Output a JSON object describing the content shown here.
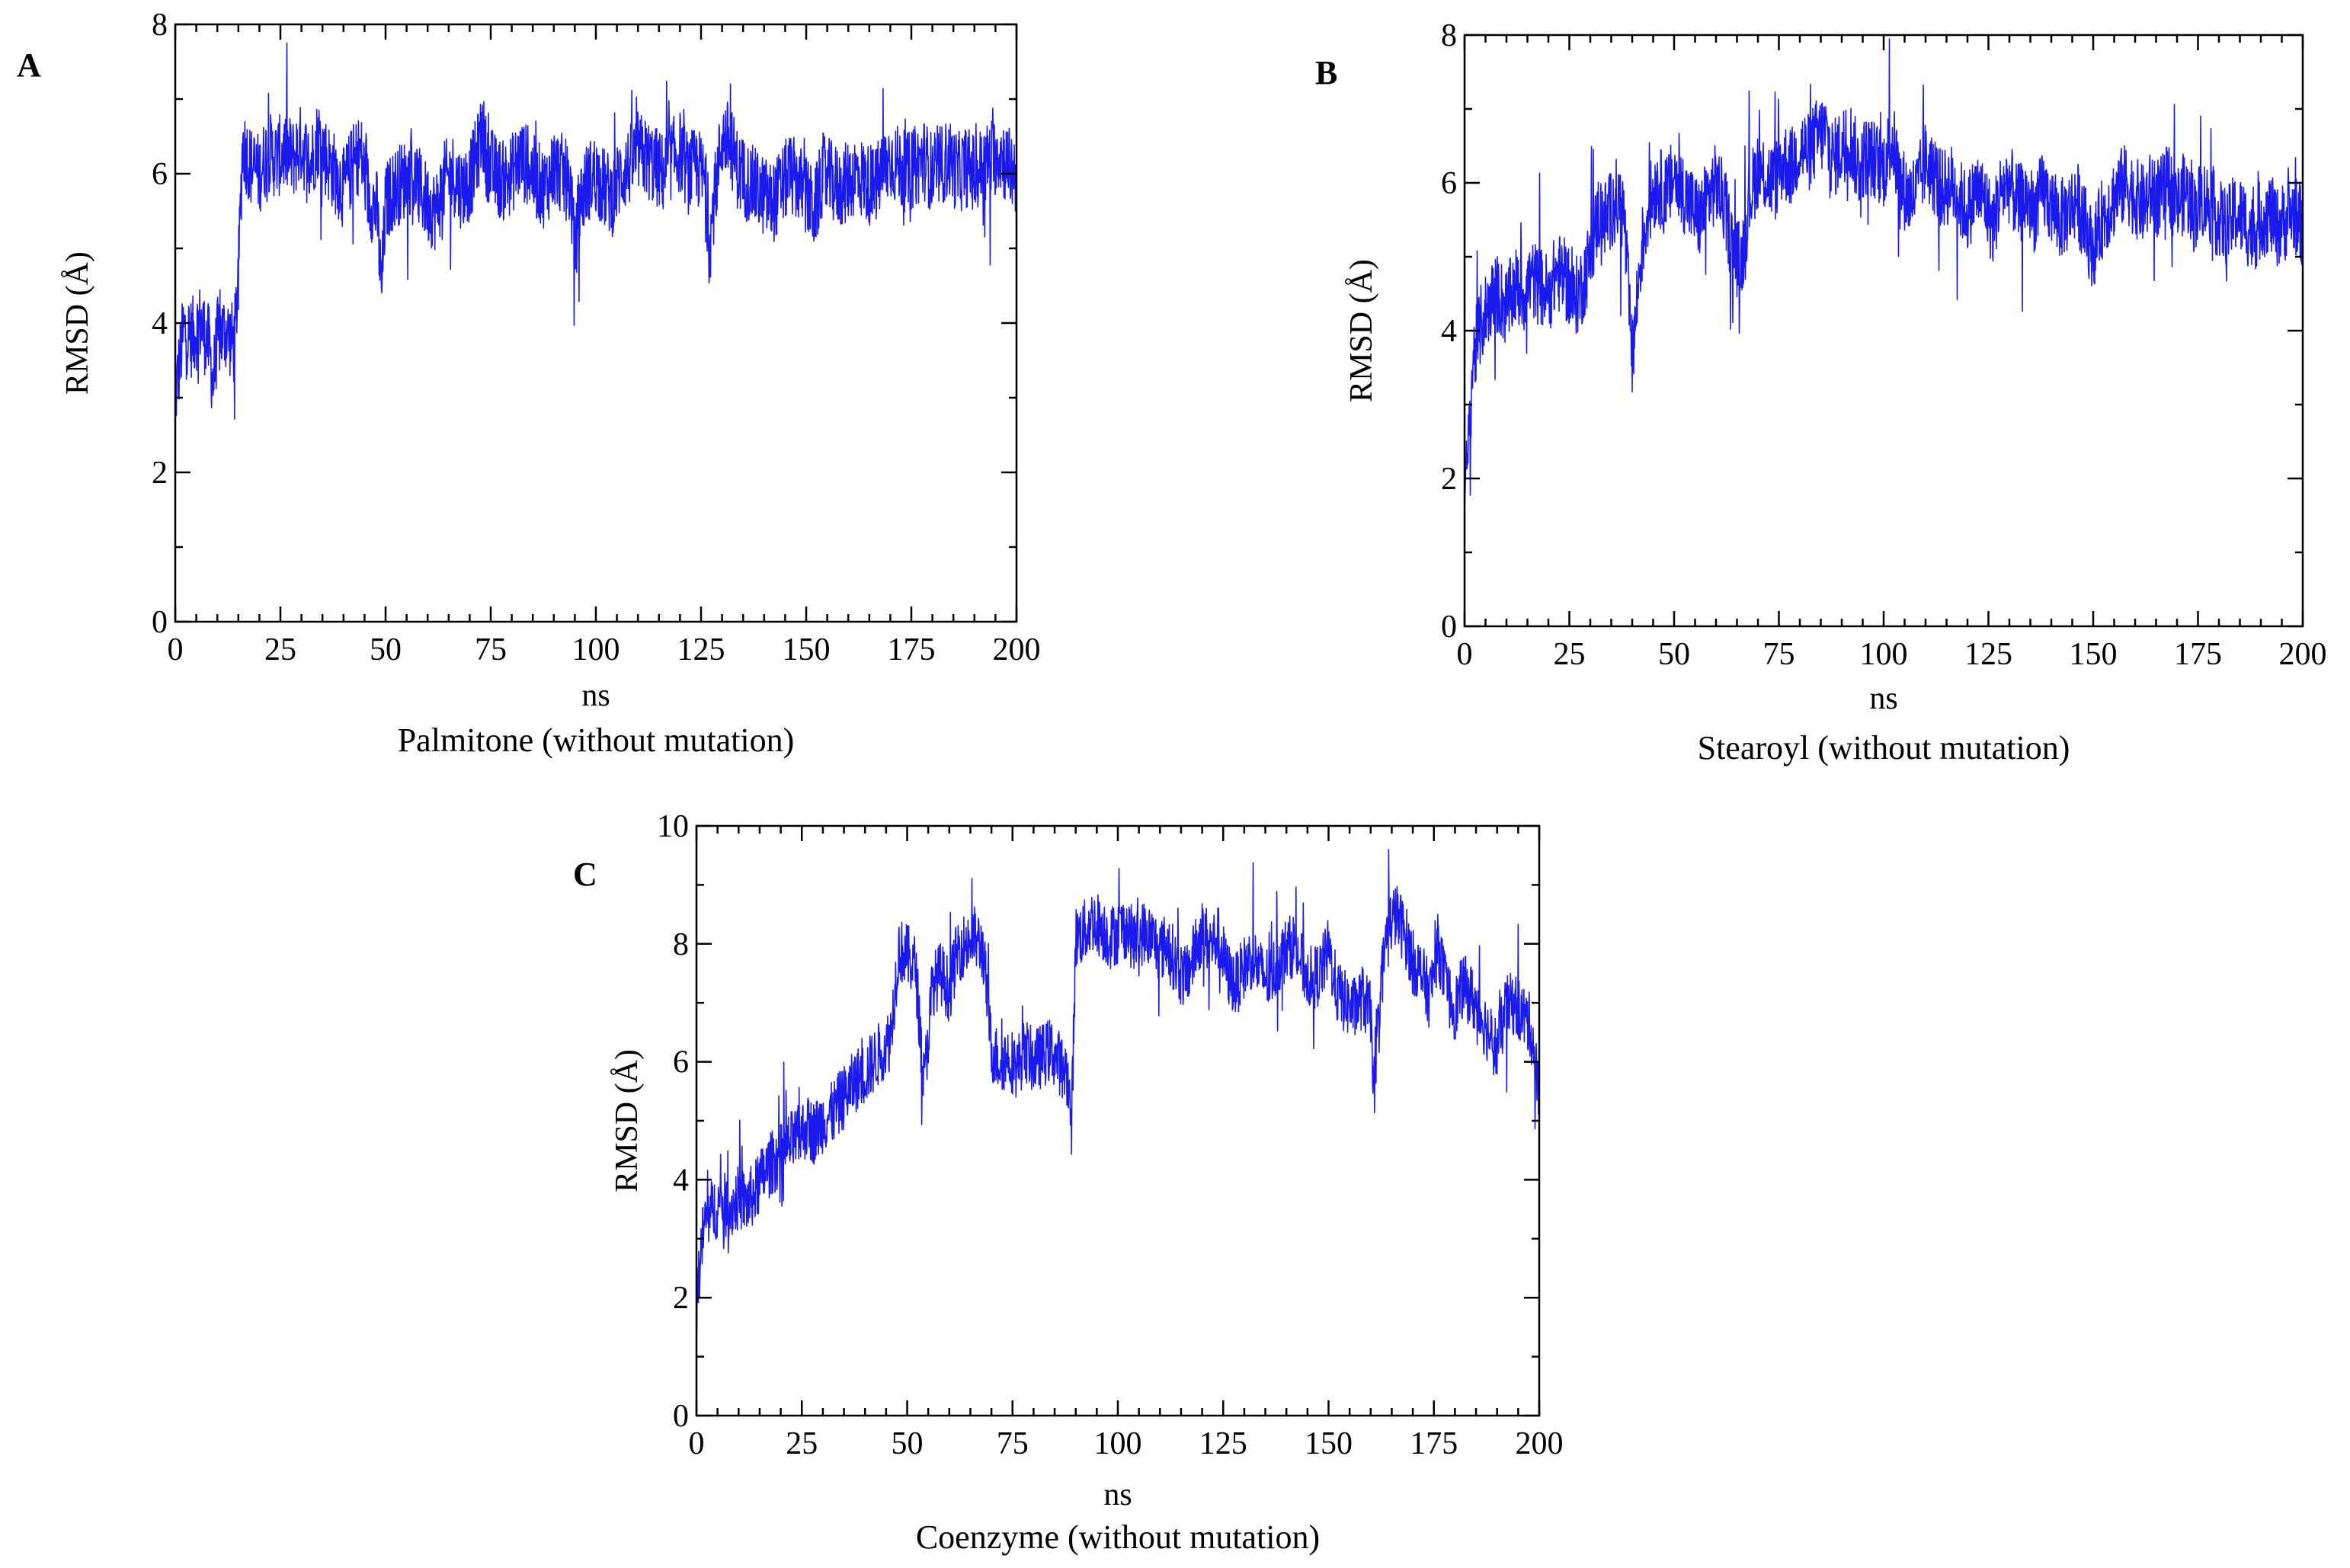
{
  "chart_data": [
    {
      "type": "line",
      "panel_label": "A",
      "title": "Palmitone (without mutation)",
      "xlabel": "ns",
      "ylabel": "RMSD (Å)",
      "xlim": [
        0,
        200
      ],
      "ylim": [
        0,
        8
      ],
      "x_ticks": [
        0,
        25,
        50,
        75,
        100,
        125,
        150,
        175,
        200
      ],
      "x_tick_labels": [
        "0",
        "25",
        "50",
        "75",
        "100",
        "125",
        "150",
        "175",
        "200"
      ],
      "y_ticks": [
        0,
        2,
        4,
        6,
        8
      ],
      "y_tick_labels": [
        "0",
        "2",
        "4",
        "6",
        "8"
      ],
      "color": "#1a1aee",
      "series": [
        {
          "name": "RMSD",
          "x": [
            0,
            2,
            4,
            6,
            8,
            9,
            10,
            12,
            14,
            15,
            16,
            18,
            20,
            22,
            24,
            26,
            28,
            30,
            32,
            34,
            36,
            38,
            40,
            42,
            44,
            46,
            48,
            49,
            50,
            52,
            54,
            56,
            58,
            60,
            62,
            64,
            66,
            68,
            70,
            72,
            73,
            74,
            76,
            78,
            80,
            82,
            84,
            86,
            88,
            90,
            92,
            94,
            95,
            96,
            98,
            100,
            102,
            104,
            106,
            108,
            110,
            112,
            114,
            116,
            118,
            120,
            122,
            124,
            126,
            127,
            128,
            130,
            132,
            134,
            136,
            138,
            140,
            142,
            144,
            146,
            148,
            150,
            152,
            154,
            156,
            158,
            160,
            162,
            164,
            166,
            168,
            170,
            172,
            174,
            176,
            178,
            180,
            182,
            184,
            186,
            188,
            190,
            192,
            194,
            196,
            198,
            200
          ],
          "y": [
            3.0,
            3.9,
            3.8,
            4.0,
            3.7,
            3.2,
            3.8,
            3.9,
            3.7,
            4.6,
            6.4,
            6.1,
            6.0,
            6.3,
            6.2,
            6.3,
            6.2,
            6.4,
            6.1,
            6.5,
            6.2,
            6.0,
            5.8,
            6.1,
            6.3,
            5.7,
            5.5,
            4.4,
            5.6,
            5.8,
            5.9,
            6.0,
            5.8,
            5.6,
            5.5,
            5.9,
            6.0,
            5.8,
            5.9,
            6.3,
            6.6,
            6.2,
            6.0,
            5.9,
            6.0,
            6.2,
            6.1,
            5.9,
            5.8,
            6.1,
            6.0,
            5.8,
            4.9,
            5.6,
            5.9,
            6.0,
            5.8,
            5.7,
            6.0,
            6.1,
            6.3,
            6.2,
            6.1,
            6.0,
            6.2,
            6.3,
            6.0,
            6.1,
            5.9,
            5.0,
            5.6,
            6.5,
            6.4,
            6.0,
            5.9,
            5.8,
            5.7,
            5.6,
            5.8,
            6.0,
            5.9,
            5.7,
            5.5,
            6.0,
            5.9,
            5.8,
            5.9,
            6.0,
            5.9,
            5.8,
            6.0,
            6.2,
            6.1,
            6.0,
            6.1,
            6.2,
            6.0,
            6.1,
            6.2,
            6.0,
            6.1,
            6.0,
            6.1,
            6.2,
            6.3,
            6.1,
            6.0
          ]
        }
      ]
    },
    {
      "type": "line",
      "panel_label": "B",
      "title": "Stearoyl (without mutation)",
      "xlabel": "ns",
      "ylabel": "RMSD (Å)",
      "xlim": [
        0,
        200
      ],
      "ylim": [
        0,
        8
      ],
      "x_ticks": [
        0,
        25,
        50,
        75,
        100,
        125,
        150,
        175,
        200
      ],
      "x_tick_labels": [
        "0",
        "25",
        "50",
        "75",
        "100",
        "125",
        "150",
        "175",
        "200"
      ],
      "y_ticks": [
        0,
        2,
        4,
        6,
        8
      ],
      "y_tick_labels": [
        "0",
        "2",
        "4",
        "6",
        "8"
      ],
      "color": "#1a1aee",
      "series": [
        {
          "name": "RMSD",
          "x": [
            0,
            1,
            2,
            4,
            6,
            8,
            10,
            12,
            14,
            16,
            18,
            20,
            22,
            24,
            26,
            28,
            30,
            32,
            34,
            36,
            38,
            40,
            42,
            44,
            46,
            48,
            50,
            52,
            54,
            56,
            58,
            60,
            62,
            64,
            66,
            68,
            70,
            72,
            74,
            76,
            78,
            80,
            82,
            84,
            86,
            88,
            90,
            92,
            94,
            96,
            98,
            100,
            102,
            104,
            106,
            108,
            110,
            112,
            114,
            116,
            118,
            120,
            122,
            124,
            126,
            128,
            130,
            132,
            134,
            136,
            138,
            140,
            142,
            144,
            146,
            148,
            150,
            152,
            154,
            156,
            158,
            160,
            162,
            164,
            166,
            168,
            170,
            172,
            174,
            176,
            178,
            180,
            182,
            184,
            186,
            188,
            190,
            192,
            194,
            196,
            198,
            200
          ],
          "y": [
            1.6,
            2.5,
            3.6,
            4.1,
            4.4,
            4.5,
            4.3,
            4.6,
            4.5,
            4.7,
            4.6,
            4.5,
            4.8,
            4.7,
            4.4,
            4.6,
            5.0,
            5.6,
            5.5,
            5.8,
            5.6,
            3.6,
            5.0,
            5.7,
            6.0,
            5.8,
            6.1,
            5.9,
            5.7,
            5.5,
            5.8,
            6.0,
            5.7,
            5.1,
            4.9,
            5.8,
            6.2,
            6.1,
            6.0,
            6.3,
            6.2,
            6.5,
            6.4,
            6.6,
            6.7,
            6.3,
            6.5,
            6.6,
            6.2,
            6.4,
            6.3,
            6.2,
            6.6,
            6.0,
            5.8,
            5.9,
            6.3,
            6.1,
            5.9,
            6.0,
            5.8,
            5.6,
            5.9,
            5.8,
            5.4,
            5.9,
            6.0,
            5.7,
            5.8,
            5.6,
            5.9,
            5.7,
            5.5,
            5.6,
            5.8,
            5.4,
            5.1,
            5.5,
            5.7,
            5.9,
            6.0,
            5.8,
            5.7,
            5.9,
            5.8,
            6.0,
            5.7,
            5.9,
            5.6,
            5.8,
            5.7,
            5.5,
            5.4,
            5.6,
            5.5,
            5.3,
            5.5,
            5.6,
            5.4,
            5.5,
            5.6,
            5.4
          ]
        }
      ]
    },
    {
      "type": "line",
      "panel_label": "C",
      "title": "Coenzyme (without mutation)",
      "xlabel": "ns",
      "ylabel": "RMSD (Å)",
      "xlim": [
        0,
        200
      ],
      "ylim": [
        0,
        10
      ],
      "x_ticks": [
        0,
        25,
        50,
        75,
        100,
        125,
        150,
        175,
        200
      ],
      "x_tick_labels": [
        "0",
        "25",
        "50",
        "75",
        "100",
        "125",
        "150",
        "175",
        "200"
      ],
      "y_ticks": [
        0,
        2,
        4,
        6,
        8,
        10
      ],
      "y_tick_labels": [
        "0",
        "2",
        "4",
        "6",
        "8",
        "10"
      ],
      "color": "#1a1aee",
      "series": [
        {
          "name": "RMSD",
          "x": [
            0,
            1,
            2,
            4,
            6,
            8,
            10,
            12,
            14,
            16,
            18,
            20,
            22,
            24,
            26,
            28,
            30,
            32,
            34,
            36,
            38,
            40,
            42,
            44,
            46,
            48,
            50,
            52,
            54,
            56,
            58,
            60,
            62,
            64,
            66,
            68,
            70,
            72,
            74,
            76,
            78,
            80,
            82,
            84,
            86,
            88,
            89,
            90,
            92,
            94,
            96,
            98,
            100,
            102,
            104,
            106,
            108,
            110,
            112,
            114,
            116,
            118,
            120,
            122,
            124,
            126,
            128,
            130,
            132,
            134,
            136,
            138,
            140,
            142,
            144,
            146,
            148,
            150,
            152,
            154,
            156,
            158,
            160,
            161,
            162,
            164,
            166,
            168,
            170,
            172,
            174,
            176,
            178,
            180,
            182,
            184,
            186,
            188,
            190,
            192,
            194,
            196,
            198,
            200
          ],
          "y": [
            1.8,
            2.8,
            3.3,
            3.5,
            3.6,
            3.5,
            3.7,
            3.6,
            3.8,
            4.1,
            4.3,
            4.4,
            4.6,
            4.7,
            4.9,
            4.8,
            5.0,
            5.1,
            5.3,
            5.5,
            5.7,
            5.8,
            6.0,
            6.2,
            6.4,
            7.9,
            7.8,
            7.6,
            5.6,
            7.3,
            7.5,
            7.2,
            7.9,
            8.0,
            8.1,
            7.9,
            6.2,
            6.0,
            6.1,
            5.9,
            6.2,
            6.0,
            6.1,
            6.2,
            6.0,
            5.8,
            4.9,
            8.1,
            8.2,
            8.4,
            8.3,
            8.1,
            8.2,
            8.3,
            8.0,
            8.2,
            8.1,
            7.9,
            8.0,
            7.6,
            7.4,
            7.8,
            8.2,
            8.0,
            8.1,
            7.5,
            7.3,
            7.6,
            7.8,
            7.5,
            7.4,
            7.7,
            7.9,
            8.0,
            7.6,
            7.4,
            7.5,
            7.9,
            7.2,
            7.0,
            6.9,
            7.1,
            6.8,
            5.3,
            7.0,
            8.3,
            8.5,
            8.2,
            7.7,
            7.5,
            7.1,
            8.0,
            7.2,
            6.9,
            7.3,
            7.1,
            6.8,
            6.5,
            6.2,
            6.9,
            7.0,
            6.8,
            6.6,
            5.4
          ]
        }
      ]
    }
  ]
}
